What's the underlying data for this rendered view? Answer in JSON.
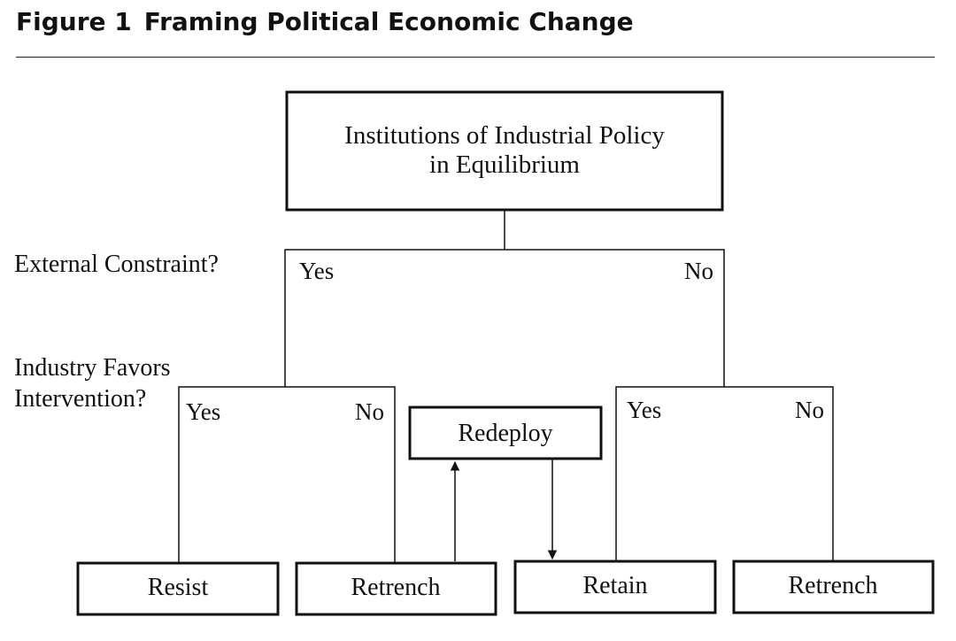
{
  "figure": {
    "label": "Figure 1",
    "title": "Framing Political Economic Change"
  },
  "diagram": {
    "root": {
      "line1": "Institutions of Industrial Policy",
      "line2": "in Equilibrium"
    },
    "questions": {
      "external_constraint": "External Constraint?",
      "industry_favors_line1": "Industry Favors",
      "industry_favors_line2": "Intervention?"
    },
    "branch_labels": {
      "top_yes": "Yes",
      "top_no": "No",
      "left_yes": "Yes",
      "left_no": "No",
      "right_yes": "Yes",
      "right_no": "No"
    },
    "middle_box": "Redeploy",
    "outcomes": {
      "resist": "Resist",
      "retrench_left": "Retrench",
      "retain": "Retain",
      "retrench_right": "Retrench"
    }
  }
}
